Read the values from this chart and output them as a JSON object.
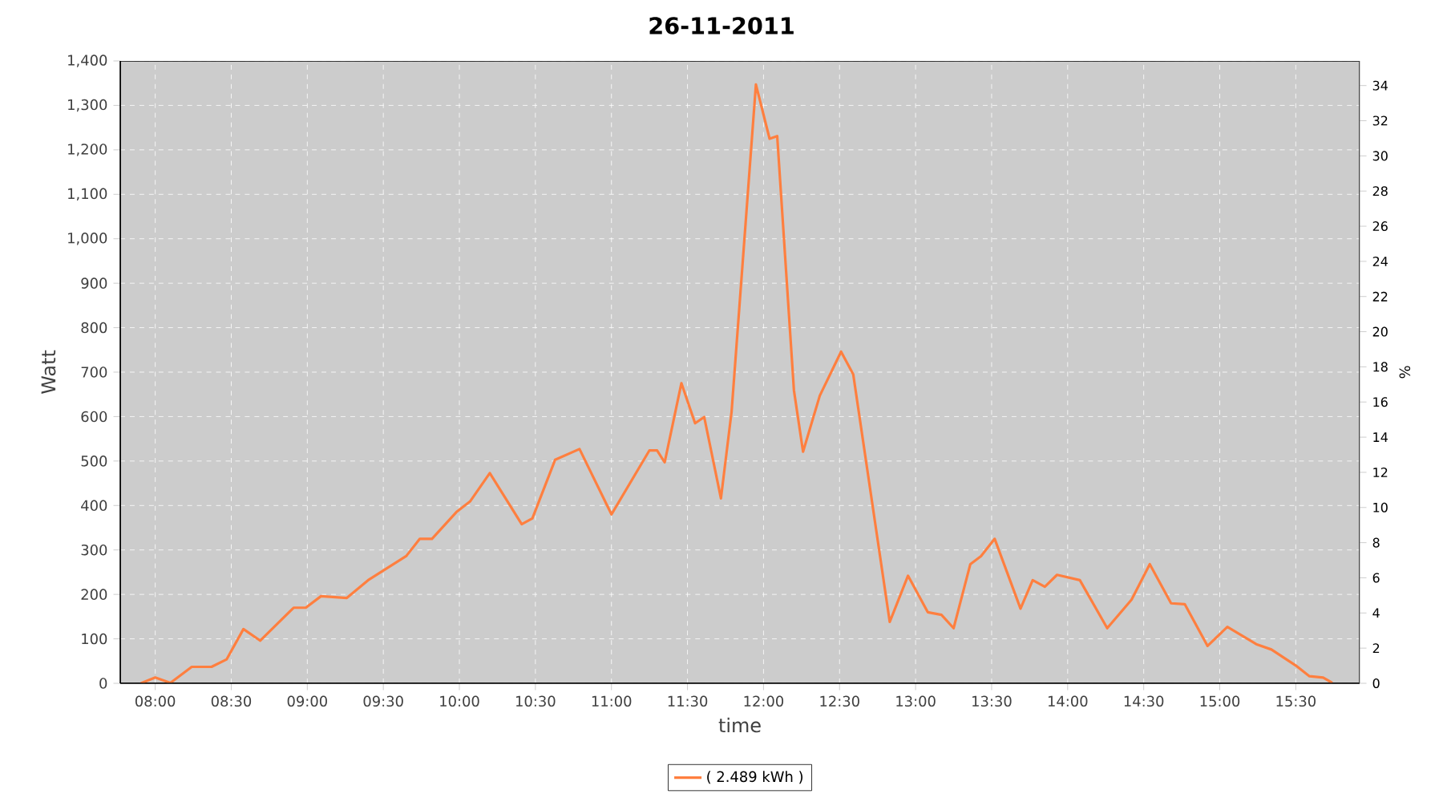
{
  "chart_data": {
    "type": "line",
    "title": "26-11-2011",
    "xlabel": "time",
    "ylabel": "Watt",
    "y2label": "%",
    "xlim": [
      7.77,
      15.92
    ],
    "xticks": [
      {
        "value": 8,
        "label": "08:00"
      },
      {
        "value": 8.5,
        "label": "08:30"
      },
      {
        "value": 9,
        "label": "09:00"
      },
      {
        "value": 9.5,
        "label": "09:30"
      },
      {
        "value": 10,
        "label": "10:00"
      },
      {
        "value": 10.5,
        "label": "10:30"
      },
      {
        "value": 11,
        "label": "11:00"
      },
      {
        "value": 11.5,
        "label": "11:30"
      },
      {
        "value": 12,
        "label": "12:00"
      },
      {
        "value": 12.5,
        "label": "12:30"
      },
      {
        "value": 13,
        "label": "13:00"
      },
      {
        "value": 13.5,
        "label": "13:30"
      },
      {
        "value": 14,
        "label": "14:00"
      },
      {
        "value": 14.5,
        "label": "14:30"
      },
      {
        "value": 15,
        "label": "15:00"
      },
      {
        "value": 15.5,
        "label": "15:30"
      }
    ],
    "ylim": [
      0,
      1400
    ],
    "yticks": [
      0,
      100,
      200,
      300,
      400,
      500,
      600,
      700,
      800,
      900,
      {
        "value": 1000,
        "label": "1,000"
      },
      {
        "value": 1100,
        "label": "1,100"
      },
      {
        "value": 1200,
        "label": "1,200"
      },
      {
        "value": 1300,
        "label": "1,300"
      },
      {
        "value": 1400,
        "label": "1,400"
      }
    ],
    "y2lim": [
      0,
      35.4
    ],
    "y2ticks": [
      0,
      2,
      4,
      6,
      8,
      10,
      12,
      14,
      16,
      18,
      20,
      22,
      24,
      26,
      28,
      30,
      32,
      34
    ],
    "grid": true,
    "legend": "bottom",
    "marker": "none",
    "line_style": "solid",
    "series": [
      {
        "name": "( 2.489 kWh )",
        "color": "#ff7f3f",
        "x": [
          7.905,
          8.0,
          8.1,
          8.24,
          8.37,
          8.47,
          8.58,
          8.69,
          8.91,
          8.99,
          9.09,
          9.26,
          9.4,
          9.65,
          9.74,
          9.82,
          9.98,
          10.07,
          10.2,
          10.41,
          10.48,
          10.63,
          10.79,
          11.0,
          11.25,
          11.3,
          11.35,
          11.46,
          11.55,
          11.61,
          11.72,
          11.79,
          11.95,
          12.04,
          12.09,
          12.2,
          12.26,
          12.37,
          12.51,
          12.59,
          12.83,
          12.95,
          13.08,
          13.17,
          13.25,
          13.36,
          13.43,
          13.52,
          13.69,
          13.77,
          13.85,
          13.93,
          14.08,
          14.26,
          14.42,
          14.54,
          14.68,
          14.77,
          14.92,
          15.05,
          15.24,
          15.34,
          15.5,
          15.59,
          15.68,
          15.74
        ],
        "values": [
          0,
          13,
          1,
          37,
          37,
          54,
          122,
          96,
          170,
          170,
          196,
          192,
          232,
          286,
          325,
          325,
          385,
          409,
          473,
          358,
          371,
          503,
          527,
          380,
          524,
          524,
          497,
          675,
          585,
          599,
          416,
          611,
          1347,
          1225,
          1231,
          659,
          521,
          647,
          746,
          695,
          138,
          242,
          160,
          154,
          124,
          268,
          286,
          325,
          168,
          232,
          217,
          244,
          232,
          124,
          188,
          268,
          180,
          178,
          84,
          127,
          88,
          76,
          40,
          16,
          13,
          1
        ]
      }
    ]
  }
}
